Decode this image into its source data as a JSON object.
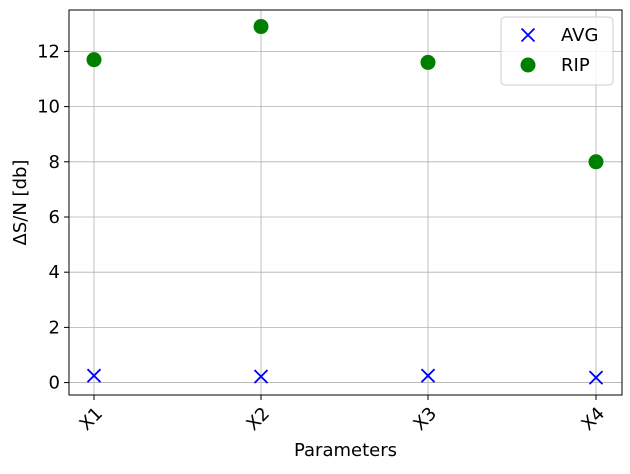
{
  "chart_data": {
    "type": "scatter",
    "title": "",
    "xlabel": "Parameters",
    "ylabel": "ΔS/N [db]",
    "categories": [
      "X1",
      "X2",
      "X3",
      "X4"
    ],
    "ylim": [
      -0.45,
      13.5
    ],
    "yticks": [
      0,
      2,
      4,
      6,
      8,
      10,
      12
    ],
    "grid": true,
    "legend_position": "top-right",
    "series": [
      {
        "name": "AVG",
        "marker": "x",
        "color": "#0000ff",
        "values": [
          0.25,
          0.22,
          0.25,
          0.18
        ]
      },
      {
        "name": "RIP",
        "marker": "circle",
        "color": "#008000",
        "values": [
          11.7,
          12.9,
          11.6,
          8.0
        ]
      }
    ]
  }
}
